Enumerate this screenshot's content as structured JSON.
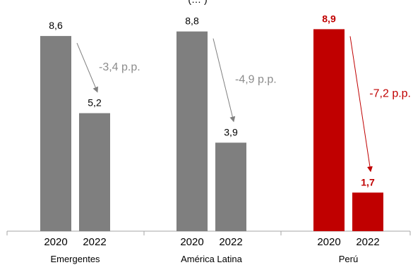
{
  "chart_data": {
    "type": "bar",
    "title_fragment": "(… )",
    "groups": [
      {
        "name": "Emergentes",
        "categories": [
          "2020",
          "2022"
        ],
        "values": [
          8.6,
          5.2
        ],
        "value_labels": [
          "8,6",
          "5,2"
        ],
        "change_label": "-3,4 p.p.",
        "highlight": false
      },
      {
        "name": "América Latina",
        "categories": [
          "2020",
          "2022"
        ],
        "values": [
          8.8,
          3.9
        ],
        "value_labels": [
          "8,8",
          "3,9"
        ],
        "change_label": "-4,9 p.p.",
        "highlight": false
      },
      {
        "name": "Perú",
        "categories": [
          "2020",
          "2022"
        ],
        "values": [
          8.9,
          1.7
        ],
        "value_labels": [
          "8,9",
          "1,7"
        ],
        "change_label": "-7,2 p.p.",
        "highlight": true
      }
    ],
    "ylim": [
      0,
      10
    ],
    "grid": false,
    "legend": "none",
    "colors": {
      "bar_default": "#7f7f7f",
      "bar_highlight": "#c00000",
      "arrow_default": "#7f7f7f",
      "change_label_default": "#8c8c8c",
      "change_label_highlight": "#c00000",
      "text": "#000000",
      "axis": "#a6a6a6"
    }
  }
}
